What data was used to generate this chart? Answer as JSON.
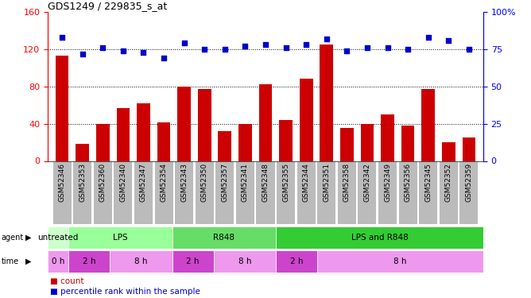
{
  "title": "GDS1249 / 229835_s_at",
  "samples": [
    "GSM52346",
    "GSM52353",
    "GSM52360",
    "GSM52340",
    "GSM52347",
    "GSM52354",
    "GSM52343",
    "GSM52350",
    "GSM52357",
    "GSM52341",
    "GSM52348",
    "GSM52355",
    "GSM52344",
    "GSM52351",
    "GSM52358",
    "GSM52342",
    "GSM52349",
    "GSM52356",
    "GSM52345",
    "GSM52352",
    "GSM52359"
  ],
  "counts": [
    113,
    18,
    40,
    57,
    62,
    41,
    80,
    77,
    32,
    40,
    82,
    44,
    88,
    125,
    35,
    40,
    50,
    38,
    77,
    20,
    25
  ],
  "percentile_ranks": [
    83,
    72,
    76,
    74,
    73,
    69,
    79,
    75,
    75,
    77,
    78,
    76,
    78,
    82,
    74,
    76,
    76,
    75,
    83,
    81,
    75
  ],
  "bar_color": "#cc0000",
  "dot_color": "#0000cc",
  "left_ylim": [
    0,
    160
  ],
  "right_ylim": [
    0,
    100
  ],
  "left_yticks": [
    0,
    40,
    80,
    120,
    160
  ],
  "right_yticks": [
    0,
    25,
    50,
    75,
    100
  ],
  "right_yticklabels": [
    "0",
    "25",
    "50",
    "75",
    "100%"
  ],
  "hlines": [
    40,
    80,
    120
  ],
  "agent_groups": [
    {
      "label": "untreated",
      "start": 0,
      "end": 1,
      "color": "#ccffcc"
    },
    {
      "label": "LPS",
      "start": 1,
      "end": 6,
      "color": "#99ff99"
    },
    {
      "label": "R848",
      "start": 6,
      "end": 11,
      "color": "#66dd66"
    },
    {
      "label": "LPS and R848",
      "start": 11,
      "end": 21,
      "color": "#33cc33"
    }
  ],
  "time_groups": [
    {
      "label": "0 h",
      "start": 0,
      "end": 1,
      "color": "#ee99ee"
    },
    {
      "label": "2 h",
      "start": 1,
      "end": 3,
      "color": "#cc44cc"
    },
    {
      "label": "8 h",
      "start": 3,
      "end": 6,
      "color": "#ee99ee"
    },
    {
      "label": "2 h",
      "start": 6,
      "end": 8,
      "color": "#cc44cc"
    },
    {
      "label": "8 h",
      "start": 8,
      "end": 11,
      "color": "#ee99ee"
    },
    {
      "label": "2 h",
      "start": 11,
      "end": 13,
      "color": "#cc44cc"
    },
    {
      "label": "8 h",
      "start": 13,
      "end": 21,
      "color": "#ee99ee"
    }
  ],
  "tick_bg_color": "#bbbbbb",
  "legend_count_color": "#cc0000",
  "legend_pct_color": "#0000cc",
  "fig_width": 6.68,
  "fig_height": 3.75,
  "dpi": 100
}
